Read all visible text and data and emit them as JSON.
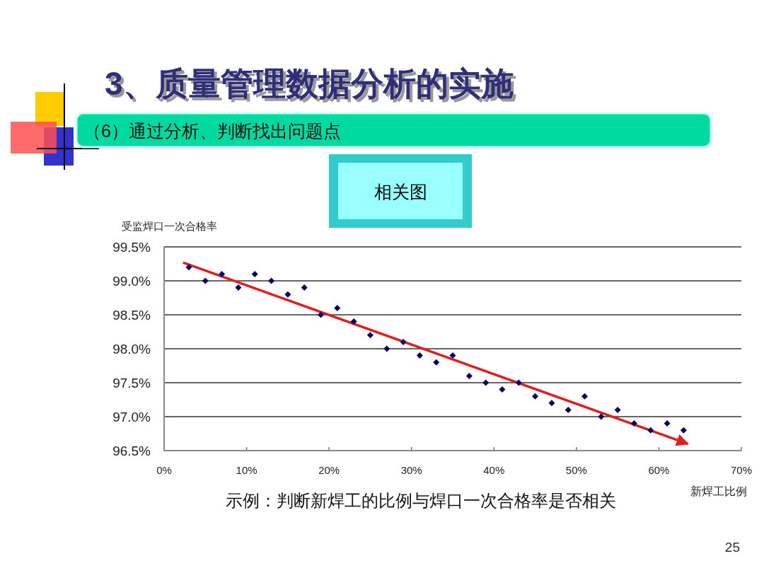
{
  "chart_data": {
    "type": "scatter",
    "title": "3、质量管理数据分析的实施",
    "subtitle": "（6）通过分析、判断找出问题点",
    "xlabel": "新焊工比例",
    "ylabel": "受监焊口一次合格率",
    "annotations": [
      "相关图",
      "示例：判断新焊工的比例与焊口一次合格率是否相关",
      "25"
    ],
    "xlim": [
      0,
      70
    ],
    "ylim": [
      96.5,
      99.5
    ],
    "xticks": [
      {
        "value": 0,
        "label": "0%"
      },
      {
        "value": 10,
        "label": "10%"
      },
      {
        "value": 20,
        "label": "20%"
      },
      {
        "value": 30,
        "label": "30%"
      },
      {
        "value": 40,
        "label": "40%"
      },
      {
        "value": 50,
        "label": "50%"
      },
      {
        "value": 60,
        "label": "60%"
      },
      {
        "value": 70,
        "label": "70%"
      }
    ],
    "yticks": [
      {
        "value": 96.5,
        "label": "96.5%"
      },
      {
        "value": 97.0,
        "label": "97.0%"
      },
      {
        "value": 97.5,
        "label": "97.5%"
      },
      {
        "value": 98.0,
        "label": "98.0%"
      },
      {
        "value": 98.5,
        "label": "98.5%"
      },
      {
        "value": 99.0,
        "label": "99.0%"
      },
      {
        "value": 99.5,
        "label": "99.5%"
      }
    ],
    "grid": "y",
    "marker": "diamond",
    "series": [
      {
        "color": "#000066",
        "x": [
          3,
          5,
          7,
          9,
          11,
          13,
          15,
          17,
          19,
          21,
          23,
          25,
          27,
          29,
          31,
          33,
          35,
          37,
          39,
          41,
          43,
          45,
          47,
          49,
          51,
          53,
          55,
          57,
          59,
          61,
          63
        ],
        "values": [
          99.2,
          99.0,
          99.1,
          98.9,
          99.1,
          99.0,
          98.8,
          98.9,
          98.5,
          98.6,
          98.4,
          98.2,
          98.0,
          98.1,
          97.9,
          97.8,
          97.9,
          97.6,
          97.5,
          97.4,
          97.5,
          97.3,
          97.2,
          97.1,
          97.3,
          97.0,
          97.1,
          96.9,
          96.8,
          96.9,
          96.8
        ]
      },
      {
        "type": "line",
        "marker": "none",
        "color": "#e01e1e",
        "x": [
          2.3,
          63.5
        ],
        "values": [
          99.27,
          96.6
        ]
      }
    ]
  }
}
